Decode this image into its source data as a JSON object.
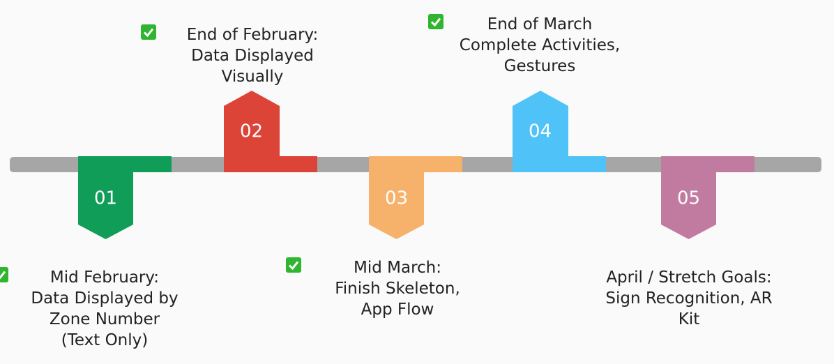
{
  "milestones": [
    {
      "number": "01",
      "color": "#0f9d58",
      "direction": "down",
      "completed": true,
      "lines": [
        "Mid February:",
        "Data Displayed by",
        "Zone Number",
        "(Text Only)"
      ]
    },
    {
      "number": "02",
      "color": "#db4437",
      "direction": "up",
      "completed": true,
      "lines": [
        "End of February:",
        "Data Displayed",
        "Visually"
      ]
    },
    {
      "number": "03",
      "color": "#f6b26b",
      "direction": "down",
      "completed": true,
      "lines": [
        "Mid March:",
        "Finish Skeleton,",
        "App Flow"
      ]
    },
    {
      "number": "04",
      "color": "#4fc3f7",
      "direction": "up",
      "completed": true,
      "lines": [
        "End of March",
        "Complete Activities,",
        "Gestures"
      ]
    },
    {
      "number": "05",
      "color": "#c27ba0",
      "direction": "down",
      "completed": false,
      "lines": [
        "April / Stretch Goals:",
        "Sign Recognition, AR",
        "Kit"
      ]
    }
  ]
}
